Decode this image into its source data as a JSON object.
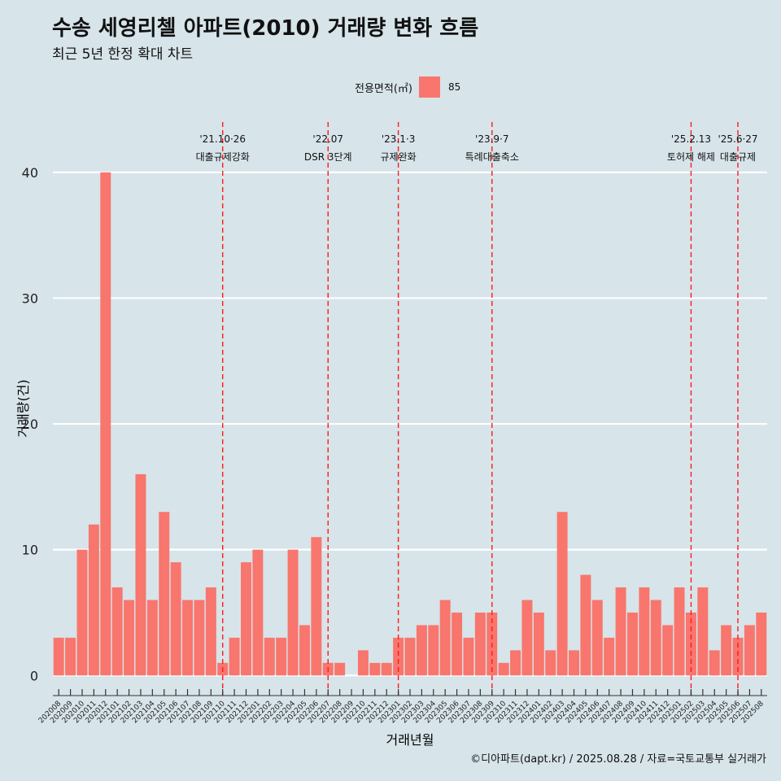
{
  "chart_data": {
    "type": "bar",
    "title": "수송 세영리첼 아파트(2010) 거래량 변화 흐름",
    "subtitle": "최근 5년 한정 확대 차트",
    "xlabel": "거래년월",
    "ylabel": "거래량(건)",
    "ylim": [
      -1.6,
      44
    ],
    "yticks": [
      0,
      10,
      20,
      30,
      40
    ],
    "grid": true,
    "legend": {
      "title": "전용면적(㎡)",
      "position": "top-center",
      "entries": [
        {
          "label": "85",
          "color": "#f8766d"
        }
      ]
    },
    "categories": [
      "202008",
      "202009",
      "202010",
      "202011",
      "202012",
      "202101",
      "202102",
      "202103",
      "202104",
      "202105",
      "202106",
      "202107",
      "202108",
      "202109",
      "202110",
      "202111",
      "202112",
      "202201",
      "202202",
      "202203",
      "202204",
      "202205",
      "202206",
      "202207",
      "202208",
      "202209",
      "202210",
      "202211",
      "202212",
      "202301",
      "202302",
      "202303",
      "202304",
      "202305",
      "202306",
      "202307",
      "202308",
      "202309",
      "202310",
      "202311",
      "202312",
      "202401",
      "202402",
      "202403",
      "202404",
      "202405",
      "202406",
      "202407",
      "202408",
      "202409",
      "202410",
      "202411",
      "202412",
      "202501",
      "202502",
      "202503",
      "202504",
      "202505",
      "202506",
      "202507",
      "202508"
    ],
    "series": [
      {
        "name": "85",
        "color": "#f8766d",
        "values": [
          3,
          3,
          10,
          12,
          40,
          7,
          6,
          16,
          6,
          13,
          9,
          6,
          6,
          7,
          1,
          3,
          9,
          10,
          3,
          3,
          10,
          4,
          11,
          1,
          1,
          0,
          2,
          1,
          1,
          3,
          3,
          4,
          4,
          6,
          5,
          3,
          5,
          5,
          1,
          2,
          6,
          5,
          2,
          13,
          2,
          8,
          6,
          3,
          7,
          5,
          7,
          6,
          4,
          7,
          5,
          7,
          2,
          4,
          3,
          4,
          5
        ]
      }
    ],
    "annotations": [
      {
        "category": "202110",
        "date": "'21.10·26",
        "label": "대출규제강화"
      },
      {
        "category": "202207",
        "date": "'22.07",
        "label": "DSR 3단계"
      },
      {
        "category": "202301",
        "date": "'23.1·3",
        "label": "규제완화"
      },
      {
        "category": "202309",
        "date": "'23.9·7",
        "label": "특례대출축소"
      },
      {
        "category": "202502",
        "date": "'25.2.13",
        "label": "토허제 해제"
      },
      {
        "category": "202506",
        "date": "'25.6·27",
        "label": "대출규제"
      }
    ]
  },
  "caption": "©디아파트(dapt.kr) / 2025.08.28 / 자료=국토교통부 실거래가"
}
